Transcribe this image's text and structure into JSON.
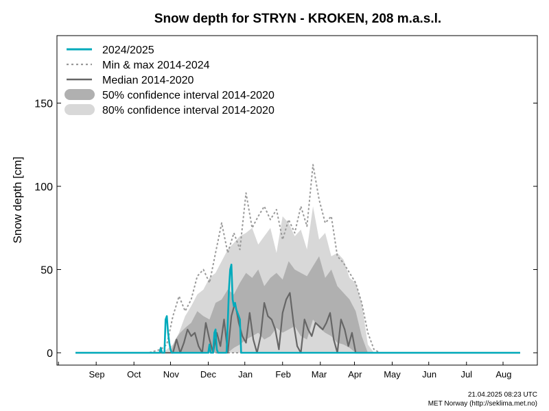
{
  "chart_data": {
    "type": "area",
    "title": "Snow depth for STRYN - KROKEN, 208 m.a.s.l.",
    "ylabel": "Snow depth [cm]",
    "xlabel": "",
    "ylim": [
      -10,
      190
    ],
    "yticks": [
      0,
      50,
      100,
      150
    ],
    "x_unit": "days from 15 Aug",
    "months": [
      "Sep",
      "Oct",
      "Nov",
      "Dec",
      "Jan",
      "Feb",
      "Mar",
      "Apr",
      "May",
      "Jun",
      "Jul",
      "Aug"
    ],
    "grid": false,
    "legend_position": "top-left",
    "legend": [
      {
        "key": "current",
        "label": "2024/2025"
      },
      {
        "key": "minmax",
        "label": "Min & max 2014-2024"
      },
      {
        "key": "median",
        "label": "Median 2014-2020"
      },
      {
        "key": "ci50",
        "label": "50% confidence interval 2014-2020"
      },
      {
        "key": "ci80",
        "label": "80% confidence interval 2014-2020"
      }
    ],
    "colors": {
      "current": "#00aabb",
      "minmax": "#999999",
      "median": "#666666",
      "ci50": "#b0b0b0",
      "ci80": "#d8d8d8"
    },
    "series": [
      {
        "key": "ci80",
        "type": "band",
        "x": [
          71,
          75,
          80,
          85,
          90,
          95,
          100,
          105,
          110,
          115,
          120,
          125,
          130,
          135,
          140,
          145,
          150,
          155,
          160,
          165,
          170,
          175,
          180,
          185,
          190,
          195,
          200,
          205,
          210,
          215,
          220,
          225,
          230,
          235,
          240,
          245
        ],
        "low": [
          0,
          0,
          0,
          0,
          0,
          0,
          0,
          0,
          0,
          0,
          0,
          0,
          0,
          0,
          0,
          0,
          0,
          0,
          0,
          0,
          0,
          0,
          0,
          0,
          0,
          0,
          0,
          0,
          0,
          0,
          0,
          0,
          0,
          0,
          0,
          0
        ],
        "high": [
          0,
          2,
          5,
          12,
          22,
          28,
          35,
          38,
          45,
          48,
          55,
          62,
          66,
          70,
          72,
          75,
          65,
          70,
          75,
          60,
          82,
          78,
          70,
          74,
          62,
          88,
          68,
          72,
          58,
          60,
          56,
          45,
          42,
          30,
          5,
          0
        ]
      },
      {
        "key": "ci50",
        "type": "band",
        "x": [
          78,
          82,
          86,
          90,
          95,
          100,
          105,
          110,
          115,
          120,
          125,
          130,
          135,
          140,
          145,
          150,
          155,
          160,
          165,
          170,
          175,
          180,
          185,
          190,
          195,
          200,
          205,
          210,
          215,
          220,
          225,
          230,
          235,
          240
        ],
        "low": [
          0,
          0,
          0,
          0,
          0,
          0,
          0,
          0,
          0,
          0,
          0,
          3,
          5,
          8,
          10,
          12,
          8,
          10,
          15,
          12,
          14,
          16,
          10,
          8,
          20,
          15,
          12,
          10,
          6,
          5,
          3,
          0,
          0,
          0
        ],
        "high": [
          0,
          8,
          12,
          15,
          18,
          25,
          22,
          20,
          30,
          32,
          38,
          35,
          42,
          48,
          45,
          50,
          40,
          45,
          48,
          44,
          55,
          50,
          48,
          46,
          52,
          58,
          45,
          50,
          40,
          36,
          32,
          25,
          10,
          0
        ]
      },
      {
        "key": "minmax",
        "type": "line",
        "name": "max",
        "x": [
          0,
          15,
          30,
          45,
          60,
          70,
          75,
          80,
          85,
          90,
          95,
          100,
          105,
          110,
          115,
          120,
          125,
          130,
          135,
          140,
          145,
          150,
          155,
          160,
          165,
          170,
          175,
          180,
          185,
          190,
          195,
          200,
          205,
          210,
          215,
          220,
          225,
          230,
          235,
          240,
          245,
          250,
          365
        ],
        "y": [
          0,
          0,
          0,
          0,
          0,
          2,
          5,
          22,
          34,
          25,
          32,
          46,
          50,
          42,
          60,
          78,
          60,
          72,
          62,
          96,
          75,
          82,
          88,
          80,
          86,
          68,
          80,
          72,
          88,
          76,
          113,
          92,
          78,
          82,
          58,
          54,
          48,
          42,
          30,
          12,
          2,
          0,
          0
        ]
      },
      {
        "key": "minmax",
        "type": "line",
        "name": "min",
        "x": [
          0,
          365
        ],
        "y": [
          0,
          0
        ]
      },
      {
        "key": "median",
        "type": "line",
        "x": [
          0,
          80,
          83,
          86,
          89,
          92,
          95,
          98,
          101,
          104,
          107,
          110,
          113,
          116,
          119,
          122,
          125,
          128,
          131,
          134,
          137,
          140,
          143,
          146,
          149,
          152,
          155,
          158,
          161,
          164,
          167,
          170,
          173,
          176,
          179,
          182,
          185,
          188,
          191,
          194,
          197,
          200,
          203,
          206,
          209,
          212,
          215,
          218,
          221,
          224,
          227,
          230,
          365
        ],
        "y": [
          0,
          0,
          8,
          0,
          6,
          14,
          10,
          12,
          4,
          0,
          18,
          8,
          0,
          12,
          4,
          20,
          0,
          22,
          30,
          18,
          10,
          6,
          24,
          8,
          0,
          10,
          30,
          22,
          20,
          14,
          2,
          24,
          32,
          36,
          18,
          4,
          0,
          20,
          14,
          10,
          18,
          16,
          14,
          18,
          24,
          8,
          0,
          20,
          14,
          4,
          12,
          0,
          0
        ]
      },
      {
        "key": "current",
        "type": "line",
        "x": [
          0,
          68,
          69,
          70,
          71,
          72,
          73,
          74,
          75,
          76,
          77,
          78,
          79,
          80,
          81,
          82,
          83,
          84,
          85,
          86,
          87,
          88,
          89,
          90,
          91,
          92,
          93,
          94,
          95,
          96,
          97,
          98,
          99,
          100,
          101,
          102,
          103,
          104,
          105,
          106,
          107,
          108,
          109,
          110,
          111,
          112,
          113,
          114,
          115,
          116,
          117,
          118,
          119,
          120,
          121,
          122,
          123,
          124,
          125,
          126,
          127,
          128,
          129,
          130,
          131,
          132,
          133,
          134,
          135,
          136,
          165,
          166,
          365
        ],
        "y": [
          0,
          0,
          0,
          3,
          0,
          0,
          0,
          20,
          22,
          12,
          6,
          2,
          0,
          0,
          0,
          0,
          0,
          0,
          0,
          0,
          0,
          0,
          0,
          0,
          0,
          0,
          0,
          0,
          0,
          0,
          0,
          0,
          0,
          0,
          0,
          0,
          0,
          0,
          0,
          0,
          0,
          0,
          0,
          5,
          0,
          0,
          0,
          12,
          14,
          2,
          0,
          0,
          0,
          0,
          0,
          0,
          0,
          0,
          18,
          38,
          50,
          53,
          32,
          28,
          30,
          26,
          24,
          22,
          20,
          0,
          0,
          0,
          0
        ]
      }
    ]
  },
  "footer": {
    "timestamp": "21.04.2025 08:23 UTC",
    "credit": "MET Norway (http://seklima.met.no)"
  }
}
